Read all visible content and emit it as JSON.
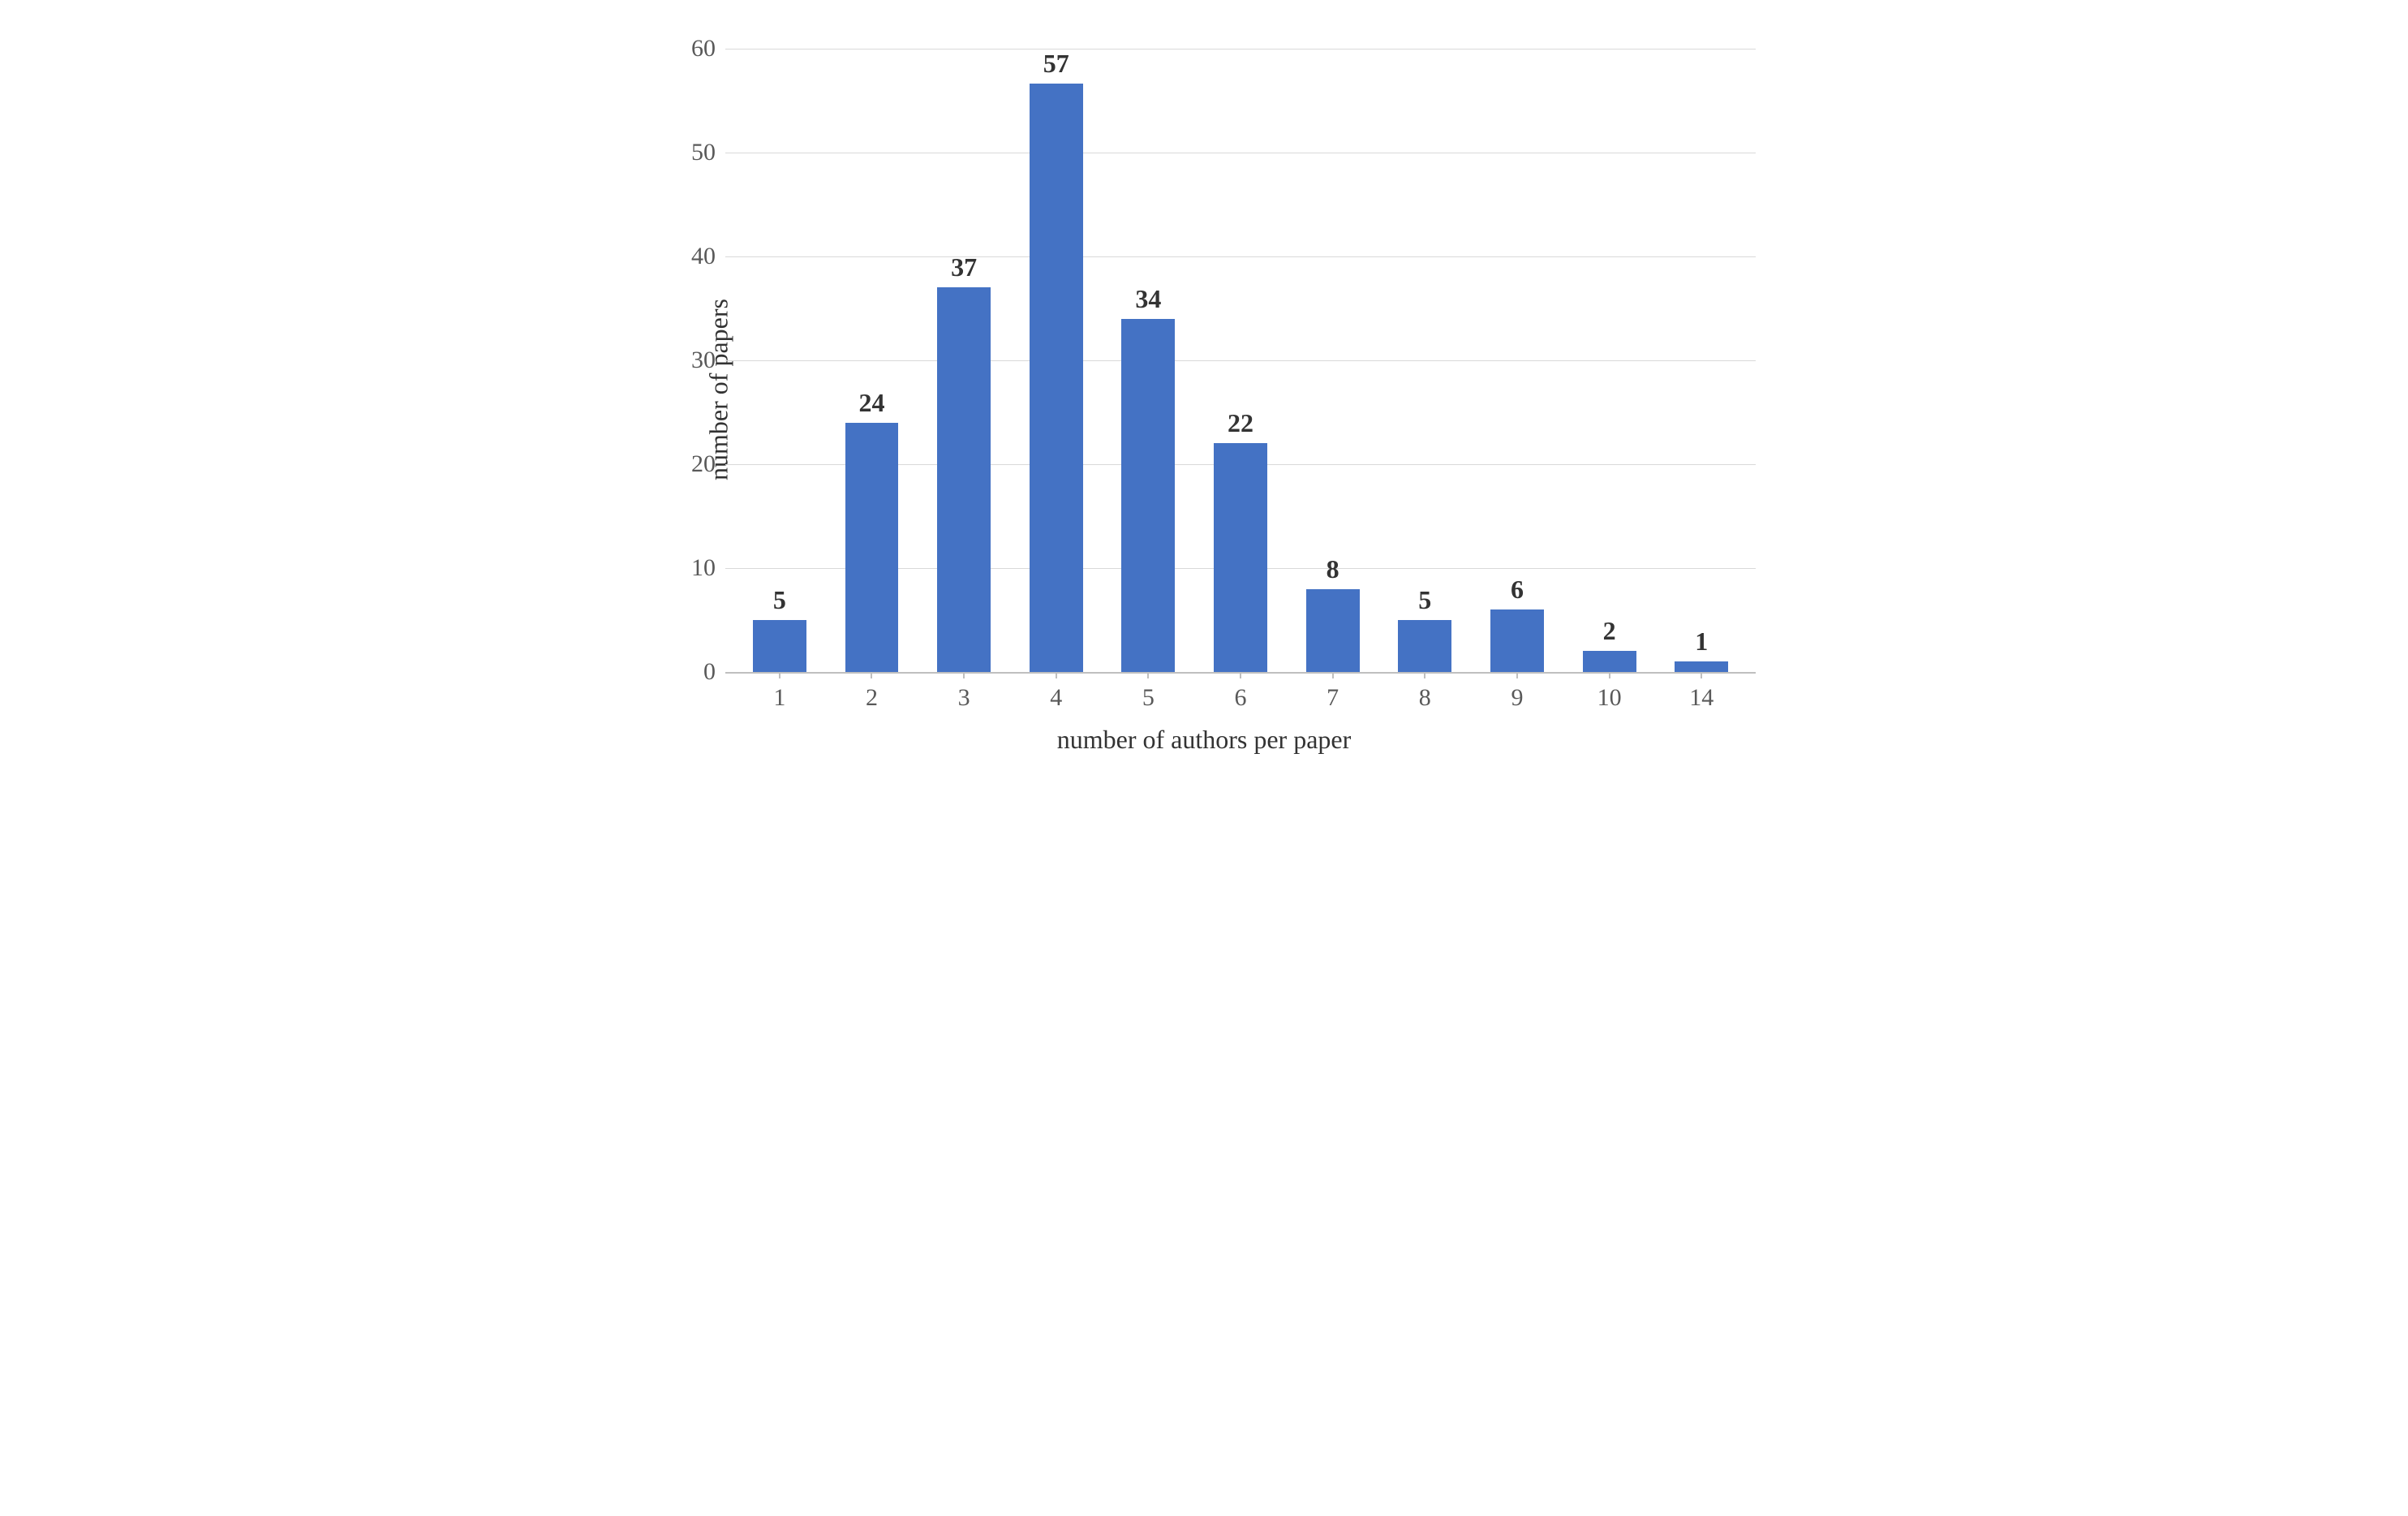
{
  "chart": {
    "type": "bar",
    "ylabel": "number of papers",
    "xlabel": "number of authors per paper",
    "categories": [
      "1",
      "2",
      "3",
      "4",
      "5",
      "6",
      "7",
      "8",
      "9",
      "10",
      "14"
    ],
    "values": [
      5,
      24,
      37,
      57,
      34,
      22,
      8,
      5,
      6,
      2,
      1
    ],
    "bar_color": "#4472c4",
    "background_color": "#ffffff",
    "grid_color": "#d9d9d9",
    "axis_color": "#bfbfbf",
    "ylim": [
      0,
      60
    ],
    "ytick_step": 10,
    "yticks": [
      0,
      10,
      20,
      30,
      40,
      50,
      60
    ],
    "label_fontsize": 32,
    "tick_fontsize": 30,
    "value_label_fontsize": 32,
    "value_label_fontweight": "bold",
    "text_color": "#333333",
    "tick_text_color": "#595959",
    "bar_width": 0.58
  }
}
